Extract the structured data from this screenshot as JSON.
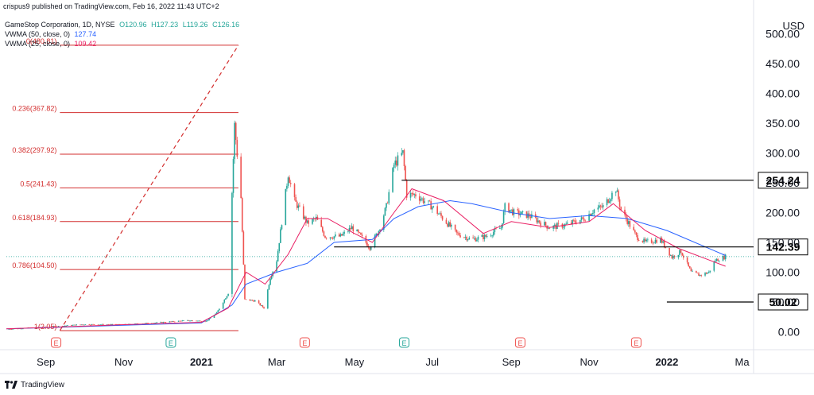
{
  "header": {
    "publisher": "crispus9 published on TradingView.com, Feb 16, 2022 11:43 UTC+2",
    "symbol_line": "GameStop Corporation, 1D, NYSE",
    "ohlc": [
      "O120.96",
      "H127.23",
      "L119.26",
      "C126.16"
    ],
    "vwma1_label": "VWMA (50, close, 0)",
    "vwma1_value": "127.74",
    "vwma2_label": "VWMA (25, close, 0)",
    "vwma2_value": "109.42"
  },
  "footer": {
    "brand": "TradingView"
  },
  "colors": {
    "up": "#26a69a",
    "down": "#ef5350",
    "vwma50": "#2962ff",
    "vwma25": "#e91e63",
    "fib": "#d32f2f",
    "level": "#000000",
    "earn": "#ef5350",
    "earn_alt": "#26a69a"
  },
  "chart_data": {
    "type": "candlestick",
    "currency": "USD",
    "ylim": [
      -30,
      530
    ],
    "y_ticks": [
      "0.00",
      "50.00",
      "100.00",
      "150.00",
      "200.00",
      "250.00",
      "300.00",
      "350.00",
      "400.00",
      "450.00",
      "500.00"
    ],
    "x_labels": [
      {
        "label": "Sep",
        "date": "2020-09-01"
      },
      {
        "label": "Nov",
        "date": "2020-11-01"
      },
      {
        "label": "2021",
        "date": "2021-01-01",
        "bold": true
      },
      {
        "label": "Mar",
        "date": "2021-03-01"
      },
      {
        "label": "May",
        "date": "2021-05-01"
      },
      {
        "label": "Jul",
        "date": "2021-07-01"
      },
      {
        "label": "Sep",
        "date": "2021-09-01"
      },
      {
        "label": "Nov",
        "date": "2021-11-01"
      },
      {
        "label": "2022",
        "date": "2022-01-01",
        "bold": true
      },
      {
        "label": "Ma",
        "date": "2022-03-01"
      }
    ],
    "price_series": [
      [
        "2020-08-01",
        4.5
      ],
      [
        "2020-09-01",
        8
      ],
      [
        "2020-10-01",
        12.5
      ],
      [
        "2020-11-01",
        12
      ],
      [
        "2020-12-01",
        16
      ],
      [
        "2020-12-20",
        19
      ],
      [
        "2021-01-05",
        18
      ],
      [
        "2021-01-13",
        32
      ],
      [
        "2021-01-22",
        65
      ],
      [
        "2021-01-27",
        347
      ],
      [
        "2021-02-01",
        225
      ],
      [
        "2021-02-04",
        54
      ],
      [
        "2021-02-12",
        52
      ],
      [
        "2021-02-19",
        40
      ],
      [
        "2021-02-24",
        91
      ],
      [
        "2021-03-01",
        120
      ],
      [
        "2021-03-10",
        265
      ],
      [
        "2021-03-15",
        220
      ],
      [
        "2021-03-25",
        182
      ],
      [
        "2021-04-01",
        190
      ],
      [
        "2021-04-08",
        160
      ],
      [
        "2021-04-20",
        160
      ],
      [
        "2021-04-29",
        175
      ],
      [
        "2021-05-06",
        160
      ],
      [
        "2021-05-13",
        142
      ],
      [
        "2021-05-20",
        170
      ],
      [
        "2021-05-26",
        210
      ],
      [
        "2021-06-01",
        280
      ],
      [
        "2021-06-08",
        300
      ],
      [
        "2021-06-11",
        230
      ],
      [
        "2021-06-18",
        230
      ],
      [
        "2021-07-01",
        210
      ],
      [
        "2021-07-20",
        165
      ],
      [
        "2021-08-01",
        155
      ],
      [
        "2021-08-12",
        160
      ],
      [
        "2021-08-24",
        175
      ],
      [
        "2021-08-27",
        210
      ],
      [
        "2021-09-03",
        200
      ],
      [
        "2021-09-15",
        195
      ],
      [
        "2021-10-01",
        175
      ],
      [
        "2021-10-15",
        180
      ],
      [
        "2021-10-28",
        190
      ],
      [
        "2021-11-05",
        205
      ],
      [
        "2021-11-12",
        210
      ],
      [
        "2021-11-22",
        240
      ],
      [
        "2021-11-26",
        205
      ],
      [
        "2021-12-08",
        160
      ],
      [
        "2021-12-15",
        150
      ],
      [
        "2021-12-27",
        155
      ],
      [
        "2022-01-05",
        125
      ],
      [
        "2022-01-12",
        135
      ],
      [
        "2022-01-20",
        100
      ],
      [
        "2022-01-27",
        95
      ],
      [
        "2022-02-03",
        100
      ],
      [
        "2022-02-08",
        120
      ],
      [
        "2022-02-16",
        126.16
      ]
    ],
    "series": [
      {
        "name": "VWMA (50, close, 0)",
        "color": "#2962ff",
        "points": [
          [
            "2020-08-01",
            5
          ],
          [
            "2020-11-01",
            11
          ],
          [
            "2021-01-01",
            15
          ],
          [
            "2021-01-25",
            45
          ],
          [
            "2021-02-05",
            80
          ],
          [
            "2021-03-01",
            100
          ],
          [
            "2021-03-25",
            115
          ],
          [
            "2021-04-15",
            150
          ],
          [
            "2021-05-15",
            155
          ],
          [
            "2021-06-01",
            190
          ],
          [
            "2021-06-20",
            210
          ],
          [
            "2021-07-15",
            220
          ],
          [
            "2021-08-01",
            215
          ],
          [
            "2021-09-01",
            200
          ],
          [
            "2021-10-01",
            190
          ],
          [
            "2021-11-01",
            195
          ],
          [
            "2021-12-01",
            190
          ],
          [
            "2022-01-01",
            170
          ],
          [
            "2022-02-16",
            128
          ]
        ]
      },
      {
        "name": "VWMA (25, close, 0)",
        "color": "#e91e63",
        "points": [
          [
            "2020-08-01",
            5
          ],
          [
            "2020-11-01",
            12
          ],
          [
            "2021-01-01",
            16
          ],
          [
            "2021-01-22",
            40
          ],
          [
            "2021-02-05",
            100
          ],
          [
            "2021-02-20",
            80
          ],
          [
            "2021-03-10",
            130
          ],
          [
            "2021-03-25",
            190
          ],
          [
            "2021-04-10",
            190
          ],
          [
            "2021-05-01",
            165
          ],
          [
            "2021-05-15",
            150
          ],
          [
            "2021-06-01",
            200
          ],
          [
            "2021-06-15",
            240
          ],
          [
            "2021-07-10",
            220
          ],
          [
            "2021-08-10",
            165
          ],
          [
            "2021-09-01",
            185
          ],
          [
            "2021-10-01",
            175
          ],
          [
            "2021-11-01",
            185
          ],
          [
            "2021-11-20",
            215
          ],
          [
            "2021-12-15",
            170
          ],
          [
            "2022-01-10",
            140
          ],
          [
            "2022-02-16",
            110
          ]
        ]
      }
    ],
    "fib_levels": [
      {
        "label": "0.236(367.82)",
        "price": 367.82
      },
      {
        "label": "0.382(297.92)",
        "price": 297.92
      },
      {
        "label": "0.5(241.43)",
        "price": 241.43
      },
      {
        "label": "0.618(184.93)",
        "price": 184.93
      },
      {
        "label": "0.786(104.50)",
        "price": 104.5
      }
    ],
    "fib_partial_labels": [
      {
        "label": "0(480.81)",
        "price": 480.81
      },
      {
        "label": "1(2.05)",
        "price": 2.05
      }
    ],
    "fib_range_dates": [
      "2020-09-12",
      "2021-01-30"
    ],
    "levels": [
      {
        "label": "254.24",
        "price": 254.24,
        "from": "2021-06-07"
      },
      {
        "label": "142.39",
        "price": 142.39,
        "from": "2021-04-15"
      },
      {
        "label": "50.02",
        "price": 50.02,
        "from": "2022-01-01"
      }
    ],
    "current_price": 126.16,
    "earnings": [
      {
        "date": "2020-09-09",
        "type": "red"
      },
      {
        "date": "2020-12-08",
        "type": "green"
      },
      {
        "date": "2021-03-23",
        "type": "red"
      },
      {
        "date": "2021-06-09",
        "type": "green"
      },
      {
        "date": "2021-09-08",
        "type": "red"
      },
      {
        "date": "2021-12-08",
        "type": "red"
      }
    ],
    "earnings_label": "E"
  }
}
